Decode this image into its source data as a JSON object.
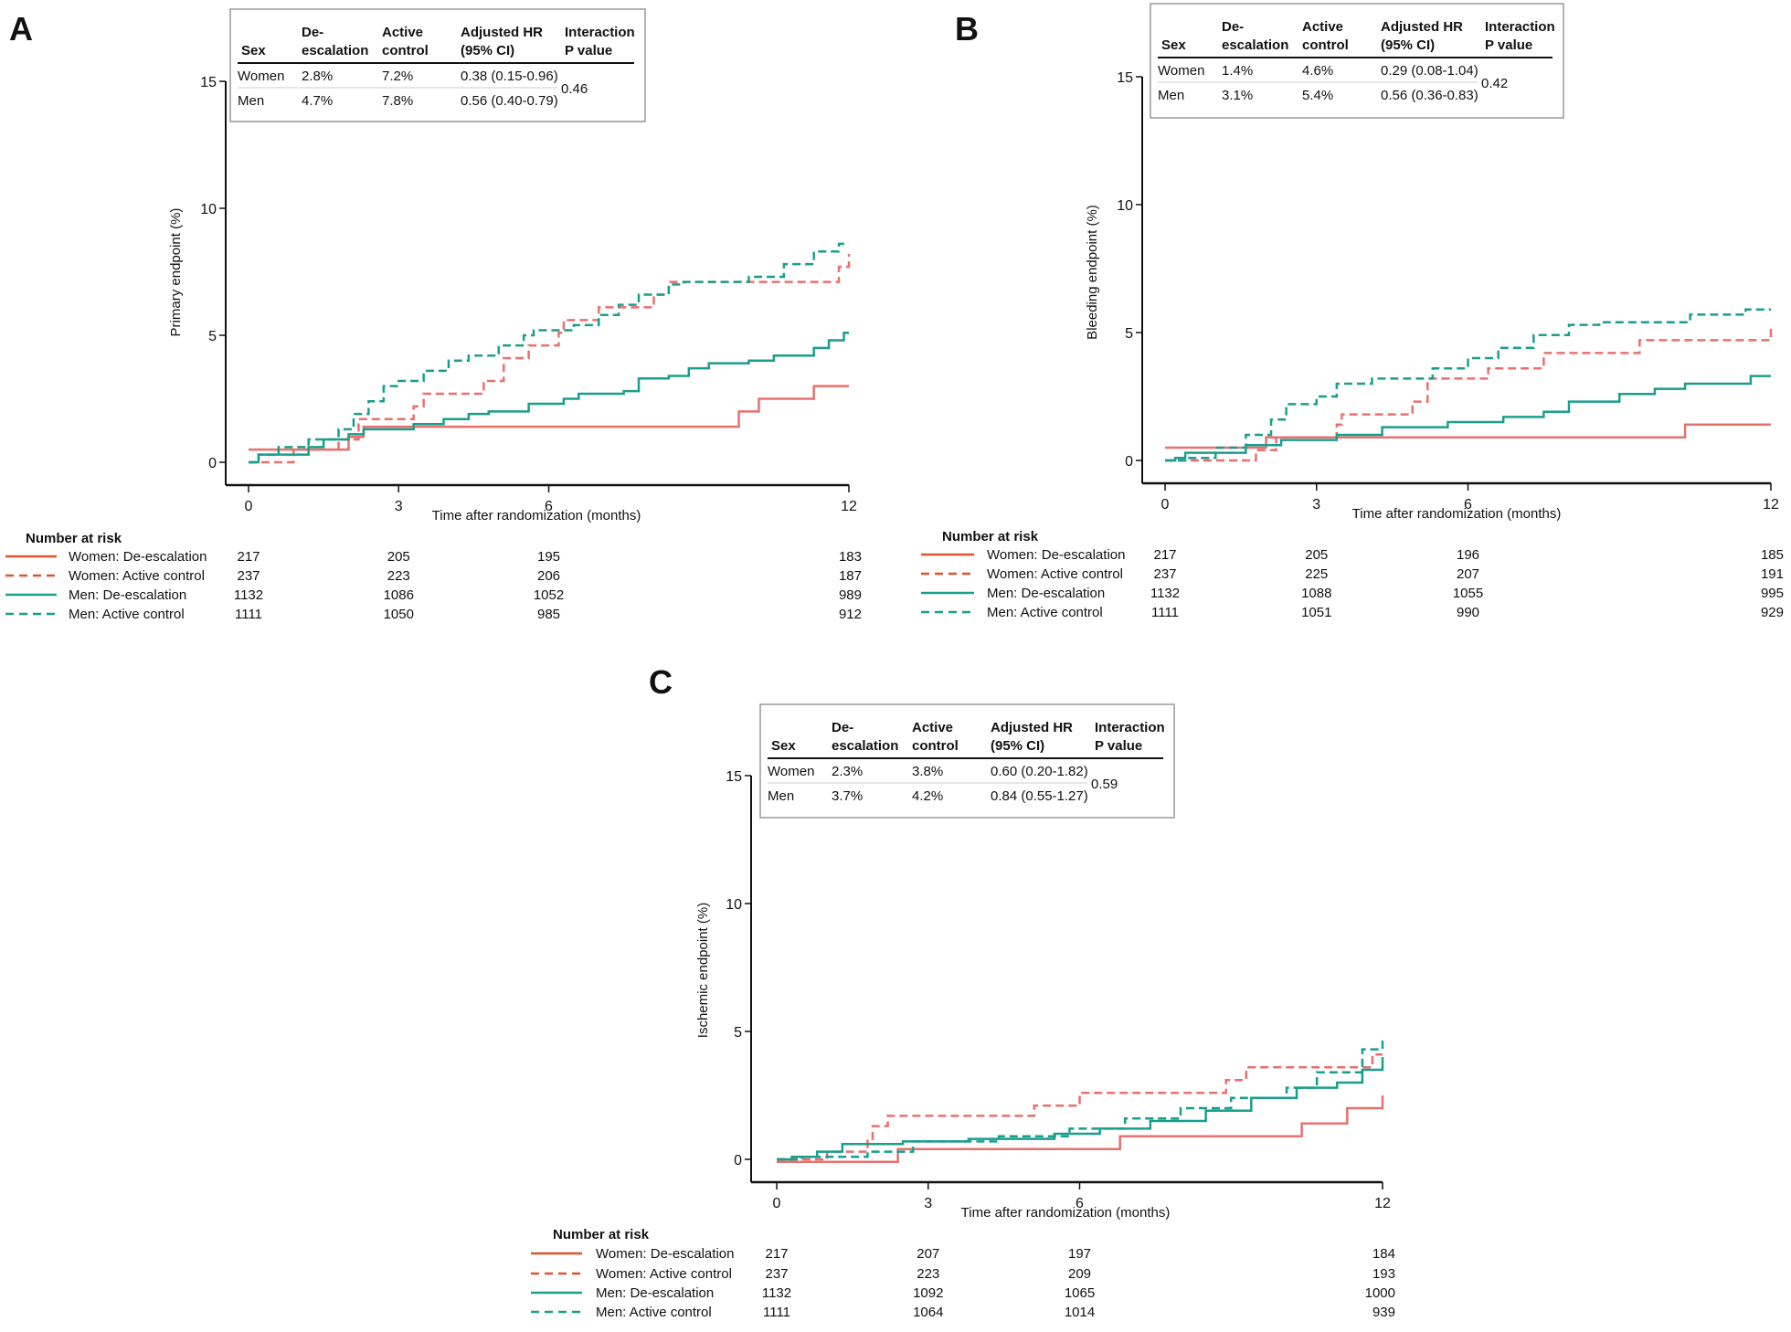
{
  "colors": {
    "women": "#e8706e",
    "women_legend": "#e0532f",
    "men": "#1a9e8c",
    "axis": "#111111",
    "box": "#999999"
  },
  "chart_data": [
    {
      "panel": "A",
      "type": "line",
      "step": true,
      "ylabel": "Primary endpoint (%)",
      "xlabel": "Time after randomization (months)",
      "xticks": [
        0,
        3,
        6,
        12
      ],
      "yticks": [
        0,
        5,
        10,
        15
      ],
      "xlim": [
        0,
        12
      ],
      "ylim": [
        0,
        15
      ],
      "table": {
        "headers": [
          [
            "",
            "Sex"
          ],
          [
            "De-",
            "escalation"
          ],
          [
            "Active",
            "control"
          ],
          [
            "Adjusted HR",
            "(95% CI)"
          ],
          [
            "Interaction",
            "P value"
          ]
        ],
        "rows": [
          [
            "Women",
            "2.8%",
            "7.2%",
            "0.38 (0.15-0.96)"
          ],
          [
            "Men",
            "4.7%",
            "7.8%",
            "0.56 (0.40-0.79)"
          ]
        ],
        "p_value": "0.46"
      },
      "series": [
        {
          "name": "Women: De-escalation",
          "group": "women",
          "dashed": false,
          "risk": [
            "217",
            "205",
            "195",
            "183"
          ],
          "points": [
            [
              0,
              0.5
            ],
            [
              2.0,
              1.0
            ],
            [
              2.3,
              1.4
            ],
            [
              9.8,
              2.0
            ],
            [
              10.2,
              2.5
            ],
            [
              11.3,
              3.0
            ],
            [
              12,
              3.0
            ]
          ]
        },
        {
          "name": "Women: Active control",
          "group": "women",
          "dashed": true,
          "risk": [
            "237",
            "223",
            "206",
            "187"
          ],
          "points": [
            [
              0,
              0
            ],
            [
              0.9,
              0.5
            ],
            [
              1.8,
              0.9
            ],
            [
              2.2,
              1.7
            ],
            [
              3.3,
              2.2
            ],
            [
              3.5,
              2.7
            ],
            [
              4.7,
              3.2
            ],
            [
              5.1,
              4.1
            ],
            [
              5.6,
              4.6
            ],
            [
              6.2,
              5.1
            ],
            [
              6.3,
              5.6
            ],
            [
              7.0,
              6.1
            ],
            [
              8.1,
              6.6
            ],
            [
              8.4,
              7.1
            ],
            [
              11.8,
              7.7
            ],
            [
              12,
              8.2
            ]
          ]
        },
        {
          "name": "Men: De-escalation",
          "group": "men",
          "dashed": false,
          "risk": [
            "1132",
            "1086",
            "1052",
            "989"
          ],
          "points": [
            [
              0,
              0
            ],
            [
              0.2,
              0.3
            ],
            [
              1.2,
              0.6
            ],
            [
              1.5,
              0.9
            ],
            [
              2.0,
              1.1
            ],
            [
              2.3,
              1.3
            ],
            [
              3.3,
              1.5
            ],
            [
              3.9,
              1.7
            ],
            [
              4.4,
              1.9
            ],
            [
              4.8,
              2.0
            ],
            [
              5.6,
              2.3
            ],
            [
              6.3,
              2.5
            ],
            [
              6.6,
              2.7
            ],
            [
              7.5,
              2.8
            ],
            [
              7.8,
              3.3
            ],
            [
              8.4,
              3.4
            ],
            [
              8.8,
              3.7
            ],
            [
              9.2,
              3.9
            ],
            [
              10.0,
              4.0
            ],
            [
              10.5,
              4.2
            ],
            [
              11.3,
              4.5
            ],
            [
              11.6,
              4.8
            ],
            [
              11.9,
              5.1
            ],
            [
              12,
              5.1
            ]
          ]
        },
        {
          "name": "Men: Active control",
          "group": "men",
          "dashed": true,
          "risk": [
            "1111",
            "1050",
            "985",
            "912"
          ],
          "points": [
            [
              0,
              0
            ],
            [
              0.2,
              0.3
            ],
            [
              0.6,
              0.6
            ],
            [
              1.2,
              0.9
            ],
            [
              1.8,
              1.3
            ],
            [
              2.1,
              1.9
            ],
            [
              2.4,
              2.4
            ],
            [
              2.7,
              3.0
            ],
            [
              3.0,
              3.2
            ],
            [
              3.5,
              3.6
            ],
            [
              4.0,
              4.0
            ],
            [
              4.4,
              4.2
            ],
            [
              5.0,
              4.6
            ],
            [
              5.5,
              5.0
            ],
            [
              5.7,
              5.2
            ],
            [
              6.5,
              5.4
            ],
            [
              7.0,
              5.8
            ],
            [
              7.4,
              6.2
            ],
            [
              7.8,
              6.6
            ],
            [
              8.4,
              7.0
            ],
            [
              8.7,
              7.1
            ],
            [
              10.0,
              7.3
            ],
            [
              10.7,
              7.8
            ],
            [
              11.3,
              8.3
            ],
            [
              11.8,
              8.6
            ],
            [
              12,
              8.6
            ]
          ]
        }
      ]
    },
    {
      "panel": "B",
      "type": "line",
      "step": true,
      "ylabel": "Bleeding endpoint (%)",
      "xlabel": "Time after randomization (months)",
      "xticks": [
        0,
        3,
        6,
        12
      ],
      "yticks": [
        0,
        5,
        10,
        15
      ],
      "xlim": [
        0,
        12
      ],
      "ylim": [
        0,
        15
      ],
      "table": {
        "headers": [
          [
            "",
            "Sex"
          ],
          [
            "De-",
            "escalation"
          ],
          [
            "Active",
            "control"
          ],
          [
            "Adjusted HR",
            "(95% CI)"
          ],
          [
            "Interaction",
            "P value"
          ]
        ],
        "rows": [
          [
            "Women",
            "1.4%",
            "4.6%",
            "0.29 (0.08-1.04)"
          ],
          [
            "Men",
            "3.1%",
            "5.4%",
            "0.56 (0.36-0.83)"
          ]
        ],
        "p_value": "0.42"
      },
      "series": [
        {
          "name": "Women: De-escalation",
          "group": "women",
          "dashed": false,
          "risk": [
            "217",
            "205",
            "196",
            "185"
          ],
          "points": [
            [
              0,
              0.5
            ],
            [
              2.0,
              0.9
            ],
            [
              10.3,
              1.4
            ],
            [
              12,
              1.4
            ]
          ]
        },
        {
          "name": "Women: Active control",
          "group": "women",
          "dashed": true,
          "risk": [
            "237",
            "225",
            "207",
            "191"
          ],
          "points": [
            [
              0,
              0
            ],
            [
              1.8,
              0.4
            ],
            [
              2.2,
              0.9
            ],
            [
              3.4,
              1.4
            ],
            [
              3.5,
              1.8
            ],
            [
              4.9,
              2.3
            ],
            [
              5.2,
              3.2
            ],
            [
              6.4,
              3.6
            ],
            [
              7.5,
              4.2
            ],
            [
              9.4,
              4.7
            ],
            [
              12,
              5.3
            ]
          ]
        },
        {
          "name": "Men: De-escalation",
          "group": "men",
          "dashed": false,
          "risk": [
            "1132",
            "1088",
            "1055",
            "995"
          ],
          "points": [
            [
              0,
              0
            ],
            [
              0.2,
              0.1
            ],
            [
              0.4,
              0.3
            ],
            [
              1.6,
              0.6
            ],
            [
              2.3,
              0.8
            ],
            [
              3.4,
              1.0
            ],
            [
              4.3,
              1.3
            ],
            [
              5.6,
              1.5
            ],
            [
              6.7,
              1.7
            ],
            [
              7.5,
              1.9
            ],
            [
              8.0,
              2.3
            ],
            [
              9.0,
              2.6
            ],
            [
              9.7,
              2.8
            ],
            [
              10.3,
              3.0
            ],
            [
              11.6,
              3.3
            ],
            [
              12,
              3.3
            ]
          ]
        },
        {
          "name": "Men: Active control",
          "group": "men",
          "dashed": true,
          "risk": [
            "1111",
            "1051",
            "990",
            "929"
          ],
          "points": [
            [
              0,
              0
            ],
            [
              0.4,
              0.1
            ],
            [
              1.0,
              0.5
            ],
            [
              1.6,
              1.0
            ],
            [
              2.1,
              1.6
            ],
            [
              2.4,
              2.2
            ],
            [
              3.0,
              2.5
            ],
            [
              3.4,
              3.0
            ],
            [
              4.1,
              3.2
            ],
            [
              5.3,
              3.6
            ],
            [
              6.0,
              4.0
            ],
            [
              6.6,
              4.4
            ],
            [
              7.3,
              4.9
            ],
            [
              8.0,
              5.3
            ],
            [
              8.6,
              5.4
            ],
            [
              10.4,
              5.7
            ],
            [
              11.5,
              5.9
            ],
            [
              12,
              5.9
            ]
          ]
        }
      ]
    },
    {
      "panel": "C",
      "type": "line",
      "step": true,
      "ylabel": "Ischemic endpoint (%)",
      "xlabel": "Time after randomization (months)",
      "xticks": [
        0,
        3,
        6,
        12
      ],
      "yticks": [
        0,
        5,
        10,
        15
      ],
      "xlim": [
        0,
        12
      ],
      "ylim": [
        0,
        15
      ],
      "table": {
        "headers": [
          [
            "",
            "Sex"
          ],
          [
            "De-",
            "escalation"
          ],
          [
            "Active",
            "control"
          ],
          [
            "Adjusted HR",
            "(95% CI)"
          ],
          [
            "Interaction",
            "P value"
          ]
        ],
        "rows": [
          [
            "Women",
            "2.3%",
            "3.8%",
            "0.60 (0.20-1.82)"
          ],
          [
            "Men",
            "3.7%",
            "4.2%",
            "0.84 (0.55-1.27)"
          ]
        ],
        "p_value": "0.59"
      },
      "series": [
        {
          "name": "Women: De-escalation",
          "group": "women",
          "dashed": false,
          "risk": [
            "217",
            "207",
            "197",
            "184"
          ],
          "points": [
            [
              0,
              -0.1
            ],
            [
              2.4,
              0.4
            ],
            [
              6.8,
              0.9
            ],
            [
              10.4,
              1.4
            ],
            [
              11.3,
              2.0
            ],
            [
              12,
              2.5
            ]
          ]
        },
        {
          "name": "Women: Active control",
          "group": "women",
          "dashed": true,
          "risk": [
            "237",
            "223",
            "209",
            "193"
          ],
          "points": [
            [
              0,
              0
            ],
            [
              1.0,
              0.3
            ],
            [
              1.8,
              0.8
            ],
            [
              1.9,
              1.3
            ],
            [
              2.2,
              1.7
            ],
            [
              5.1,
              2.1
            ],
            [
              6.0,
              2.6
            ],
            [
              8.9,
              3.1
            ],
            [
              9.3,
              3.6
            ],
            [
              11.8,
              4.1
            ],
            [
              12,
              4.1
            ]
          ]
        },
        {
          "name": "Men: De-escalation",
          "group": "men",
          "dashed": false,
          "risk": [
            "1132",
            "1092",
            "1065",
            "1000"
          ],
          "points": [
            [
              0,
              0
            ],
            [
              0.3,
              0.1
            ],
            [
              0.8,
              0.3
            ],
            [
              1.3,
              0.6
            ],
            [
              2.5,
              0.7
            ],
            [
              3.8,
              0.8
            ],
            [
              5.5,
              1.0
            ],
            [
              6.4,
              1.2
            ],
            [
              7.4,
              1.5
            ],
            [
              8.5,
              1.9
            ],
            [
              9.4,
              2.4
            ],
            [
              10.3,
              2.8
            ],
            [
              11.1,
              3.0
            ],
            [
              11.6,
              3.5
            ],
            [
              12,
              4.0
            ]
          ]
        },
        {
          "name": "Men: Active control",
          "group": "men",
          "dashed": true,
          "risk": [
            "1111",
            "1064",
            "1014",
            "939"
          ],
          "points": [
            [
              0,
              0
            ],
            [
              0.5,
              0.1
            ],
            [
              1.8,
              0.3
            ],
            [
              2.7,
              0.7
            ],
            [
              4.4,
              0.9
            ],
            [
              5.8,
              1.2
            ],
            [
              6.9,
              1.6
            ],
            [
              8.0,
              2.0
            ],
            [
              9.0,
              2.4
            ],
            [
              10.1,
              2.8
            ],
            [
              10.7,
              3.4
            ],
            [
              11.6,
              4.3
            ],
            [
              12,
              4.7
            ]
          ]
        }
      ]
    }
  ],
  "risk_title": "Number at risk"
}
